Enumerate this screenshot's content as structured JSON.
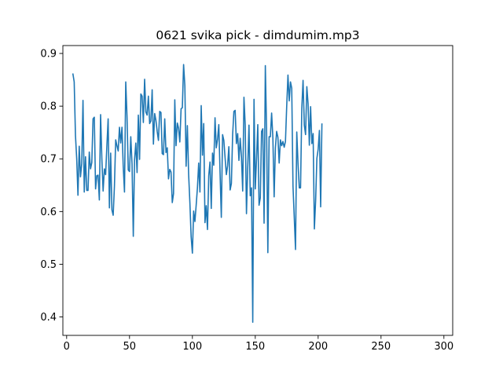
{
  "chart_data": {
    "type": "line",
    "title": "0621 svika pick - dimdumim.mp3",
    "xlabel": "",
    "ylabel": "",
    "xlim": [
      -3,
      307
    ],
    "ylim": [
      0.365,
      0.915
    ],
    "grid": false,
    "x_ticks": [
      0,
      50,
      100,
      150,
      200,
      250,
      300
    ],
    "x_tick_labels": [
      "0",
      "50",
      "100",
      "150",
      "200",
      "250",
      "300"
    ],
    "y_ticks": [
      0.4,
      0.5,
      0.6,
      0.7,
      0.8,
      0.9
    ],
    "y_tick_labels": [
      "0.4",
      "0.5",
      "0.6",
      "0.7",
      "0.8",
      "0.9"
    ],
    "series": [
      {
        "color": "#1f77b4",
        "x_start": 5,
        "x_step": 1,
        "values": [
          0.861,
          0.846,
          0.745,
          0.7,
          0.631,
          0.724,
          0.666,
          0.691,
          0.811,
          0.637,
          0.704,
          0.64,
          0.64,
          0.713,
          0.681,
          0.693,
          0.776,
          0.779,
          0.643,
          0.668,
          0.669,
          0.622,
          0.784,
          0.7,
          0.639,
          0.681,
          0.67,
          0.725,
          0.776,
          0.607,
          0.711,
          0.603,
          0.593,
          0.648,
          0.736,
          0.725,
          0.715,
          0.76,
          0.73,
          0.76,
          0.685,
          0.637,
          0.846,
          0.781,
          0.679,
          0.676,
          0.742,
          0.69,
          0.553,
          0.698,
          0.73,
          0.674,
          0.783,
          0.699,
          0.823,
          0.819,
          0.769,
          0.851,
          0.789,
          0.783,
          0.819,
          0.767,
          0.772,
          0.831,
          0.728,
          0.786,
          0.773,
          0.752,
          0.735,
          0.79,
          0.788,
          0.71,
          0.708,
          0.776,
          0.712,
          0.721,
          0.662,
          0.68,
          0.675,
          0.617,
          0.634,
          0.812,
          0.725,
          0.768,
          0.758,
          0.732,
          0.795,
          0.797,
          0.879,
          0.839,
          0.686,
          0.763,
          0.671,
          0.617,
          0.552,
          0.521,
          0.601,
          0.581,
          0.612,
          0.645,
          0.692,
          0.637,
          0.801,
          0.707,
          0.767,
          0.579,
          0.611,
          0.566,
          0.668,
          0.694,
          0.606,
          0.711,
          0.688,
          0.778,
          0.721,
          0.737,
          0.765,
          0.673,
          0.589,
          0.746,
          0.735,
          0.702,
          0.67,
          0.687,
          0.723,
          0.641,
          0.653,
          0.746,
          0.79,
          0.792,
          0.729,
          0.748,
          0.697,
          0.739,
          0.704,
          0.639,
          0.817,
          0.764,
          0.596,
          0.684,
          0.764,
          0.63,
          0.645,
          0.39,
          0.813,
          0.643,
          0.7,
          0.765,
          0.612,
          0.626,
          0.752,
          0.757,
          0.578,
          0.877,
          0.755,
          0.522,
          0.742,
          0.742,
          0.787,
          0.74,
          0.628,
          0.721,
          0.752,
          0.741,
          0.692,
          0.736,
          0.725,
          0.733,
          0.722,
          0.733,
          0.8,
          0.859,
          0.81,
          0.846,
          0.834,
          0.648,
          0.589,
          0.528,
          0.751,
          0.691,
          0.645,
          0.645,
          0.796,
          0.849,
          0.764,
          0.746,
          0.837,
          0.804,
          0.726,
          0.799,
          0.729,
          0.748,
          0.567,
          0.621,
          0.701,
          0.718,
          0.754,
          0.609,
          0.766
        ]
      }
    ]
  }
}
